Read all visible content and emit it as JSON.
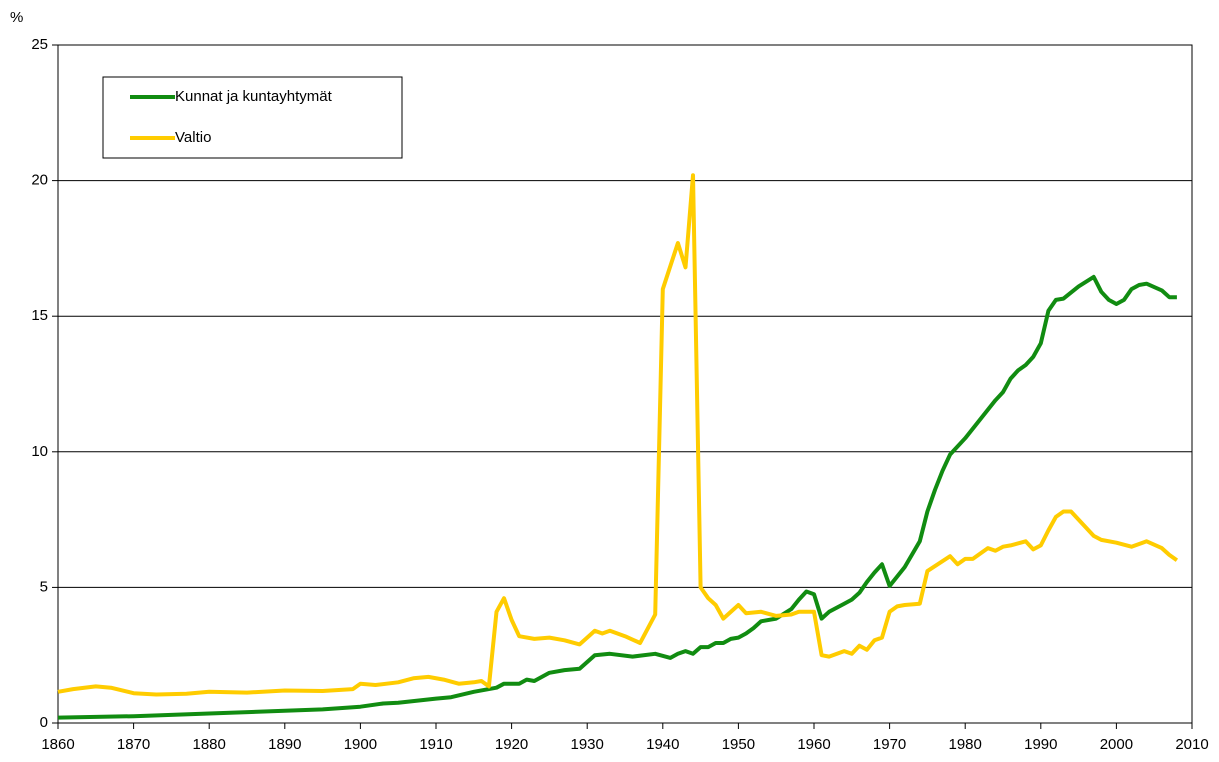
{
  "chart_data": {
    "type": "line",
    "y_label": "%",
    "xlim": [
      1860,
      2010
    ],
    "xticks": [
      1860,
      1870,
      1880,
      1890,
      1900,
      1910,
      1920,
      1930,
      1940,
      1950,
      1960,
      1970,
      1980,
      1990,
      2000,
      2010
    ],
    "ylim": [
      0,
      25
    ],
    "yticks": [
      0,
      5,
      10,
      15,
      20,
      25
    ],
    "grid": true,
    "legend": "upper left",
    "series": [
      {
        "name": "Kunnat ja kuntayhtymät",
        "color": "#118c11",
        "x": [
          1860,
          1870,
          1880,
          1890,
          1895,
          1900,
          1903,
          1905,
          1910,
          1912,
          1915,
          1918,
          1919,
          1921,
          1922,
          1923,
          1925,
          1927,
          1929,
          1931,
          1933,
          1936,
          1939,
          1941,
          1942,
          1943,
          1944,
          1945,
          1946,
          1947,
          1948,
          1949,
          1950,
          1951,
          1952,
          1953,
          1955,
          1957,
          1958,
          1959,
          1960,
          1961,
          1962,
          1964,
          1965,
          1966,
          1967,
          1968,
          1969,
          1970,
          1972,
          1974,
          1975,
          1976,
          1977,
          1978,
          1980,
          1982,
          1984,
          1985,
          1986,
          1987,
          1988,
          1989,
          1990,
          1991,
          1992,
          1993,
          1995,
          1997,
          1998,
          1999,
          2000,
          2001,
          2002,
          2003,
          2004,
          2006,
          2007,
          2008
        ],
        "values": [
          0.2,
          0.25,
          0.35,
          0.45,
          0.5,
          0.6,
          0.72,
          0.75,
          0.9,
          0.95,
          1.15,
          1.3,
          1.45,
          1.45,
          1.6,
          1.55,
          1.85,
          1.95,
          2.0,
          2.5,
          2.55,
          2.45,
          2.55,
          2.4,
          2.55,
          2.65,
          2.55,
          2.8,
          2.8,
          2.95,
          2.95,
          3.1,
          3.15,
          3.3,
          3.5,
          3.75,
          3.85,
          4.2,
          4.55,
          4.85,
          4.75,
          3.85,
          4.1,
          4.4,
          4.55,
          4.8,
          5.2,
          5.55,
          5.85,
          5.05,
          5.75,
          6.7,
          7.8,
          8.6,
          9.3,
          9.9,
          10.5,
          11.2,
          11.9,
          12.2,
          12.7,
          13.0,
          13.2,
          13.5,
          14.0,
          15.2,
          15.6,
          15.65,
          16.1,
          16.45,
          15.9,
          15.6,
          15.45,
          15.6,
          16.0,
          16.15,
          16.2,
          15.95,
          15.7,
          15.7
        ]
      },
      {
        "name": "Valtio",
        "color": "#ffcc00",
        "x": [
          1860,
          1862,
          1865,
          1867,
          1870,
          1873,
          1877,
          1880,
          1885,
          1890,
          1895,
          1899,
          1900,
          1902,
          1905,
          1907,
          1909,
          1911,
          1913,
          1915,
          1916,
          1917,
          1918,
          1919,
          1920,
          1921,
          1923,
          1925,
          1927,
          1929,
          1931,
          1932,
          1933,
          1935,
          1937,
          1939,
          1940,
          1942,
          1943,
          1944,
          1945,
          1946,
          1947,
          1948,
          1950,
          1951,
          1953,
          1955,
          1957,
          1958,
          1960,
          1961,
          1962,
          1964,
          1965,
          1966,
          1967,
          1968,
          1969,
          1970,
          1971,
          1972,
          1974,
          1975,
          1978,
          1979,
          1980,
          1981,
          1983,
          1984,
          1985,
          1986,
          1988,
          1989,
          1990,
          1991,
          1992,
          1993,
          1994,
          1997,
          1998,
          2000,
          2002,
          2004,
          2006,
          2007,
          2008
        ],
        "values": [
          1.15,
          1.25,
          1.35,
          1.3,
          1.1,
          1.05,
          1.08,
          1.15,
          1.12,
          1.2,
          1.18,
          1.25,
          1.45,
          1.4,
          1.5,
          1.65,
          1.7,
          1.6,
          1.45,
          1.5,
          1.55,
          1.35,
          4.1,
          4.6,
          3.8,
          3.2,
          3.1,
          3.15,
          3.05,
          2.9,
          3.4,
          3.3,
          3.4,
          3.2,
          2.95,
          4.0,
          16.0,
          17.7,
          16.8,
          20.2,
          5.0,
          4.6,
          4.35,
          3.85,
          4.35,
          4.05,
          4.1,
          3.95,
          4.0,
          4.1,
          4.1,
          2.5,
          2.45,
          2.65,
          2.55,
          2.85,
          2.7,
          3.05,
          3.15,
          4.1,
          4.3,
          4.35,
          4.4,
          5.6,
          6.15,
          5.85,
          6.05,
          6.05,
          6.45,
          6.35,
          6.5,
          6.55,
          6.7,
          6.4,
          6.55,
          7.1,
          7.6,
          7.8,
          7.8,
          6.9,
          6.75,
          6.65,
          6.5,
          6.7,
          6.45,
          6.2,
          6.0
        ]
      }
    ]
  }
}
